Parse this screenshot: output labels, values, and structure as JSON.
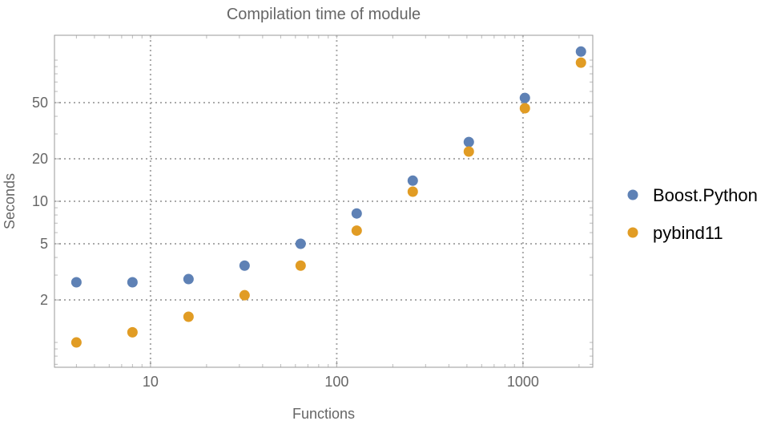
{
  "chart_data": {
    "type": "scatter",
    "title": "Compilation time of module",
    "xlabel": "Functions",
    "ylabel": "Seconds",
    "xscale": "log",
    "yscale": "log",
    "xlim": [
      3.05,
      2370
    ],
    "ylim": [
      0.667,
      150
    ],
    "grid": true,
    "legend_position": "right",
    "x_ticks": [
      10,
      100,
      1000
    ],
    "x_tick_labels": [
      "10",
      "100",
      "1000"
    ],
    "y_ticks": [
      2,
      5,
      10,
      20,
      50
    ],
    "y_tick_labels": [
      "2",
      "5",
      "10",
      "20",
      "50"
    ],
    "x": [
      4,
      8,
      16,
      32,
      64,
      128,
      256,
      512,
      1024,
      2048
    ],
    "series": [
      {
        "name": "Boost.Python",
        "color": "#5E81B5",
        "values": [
          2.67,
          2.67,
          2.81,
          3.5,
          5.0,
          8.2,
          14.0,
          26.3,
          54,
          115
        ]
      },
      {
        "name": "pybind11",
        "color": "#E19C24",
        "values": [
          1.0,
          1.18,
          1.52,
          2.16,
          3.5,
          6.2,
          11.7,
          22.5,
          45.6,
          96
        ]
      }
    ]
  }
}
